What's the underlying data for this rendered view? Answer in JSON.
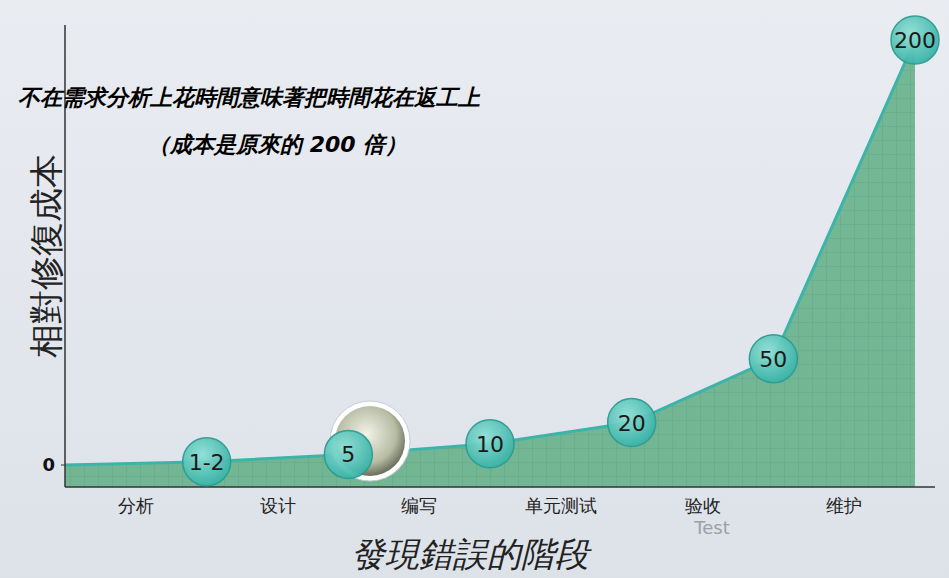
{
  "chart_data": {
    "type": "area",
    "title": "不在需求分析上花時間意味著把時間花在返工上",
    "subtitle": "（成本是原來的 200 倍）",
    "xlabel": "發現錯誤的階段",
    "ylabel": "相對修復成本",
    "categories": [
      "分析",
      "设计",
      "编写",
      "单元测试",
      "验收",
      "维护"
    ],
    "values": [
      1.5,
      5,
      10,
      20,
      50,
      200
    ],
    "value_labels": [
      "1-2",
      "5",
      "10",
      "20",
      "50",
      "200"
    ],
    "data_labels": true,
    "marker": "circle",
    "color": "#3cb4a9",
    "ylim": [
      0,
      200
    ],
    "yticks": [
      0
    ],
    "annotations": [
      "Test"
    ]
  }
}
